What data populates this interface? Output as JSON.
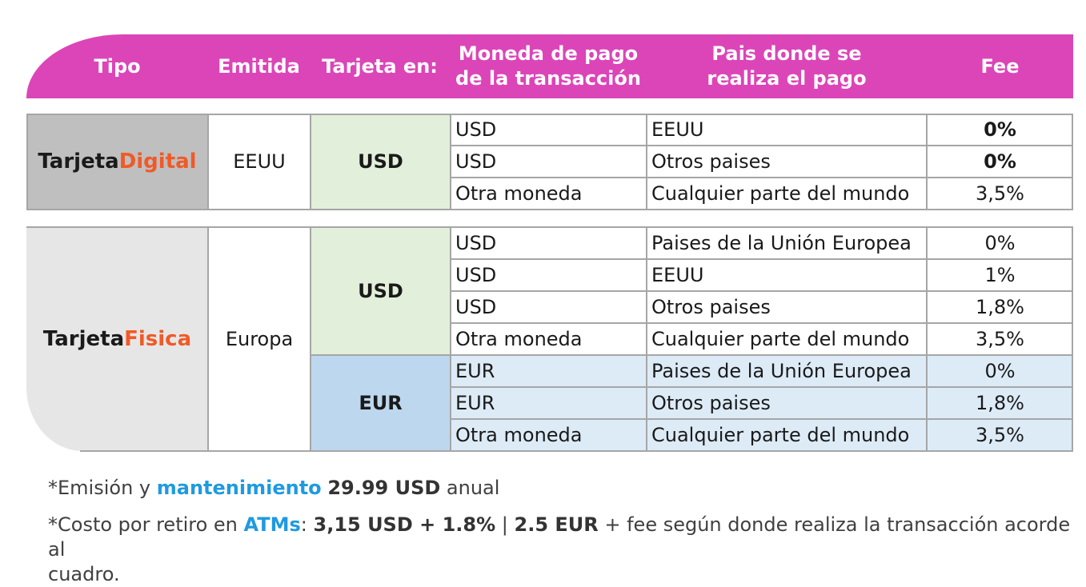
{
  "header": {
    "tipo": "Tipo",
    "emitida": "Emitida",
    "tarjeta_en": "Tarjeta en:",
    "moneda_l1": "Moneda de pago",
    "moneda_l2": "de la transacción",
    "pais_l1": "Pais donde se",
    "pais_l2": "realiza el pago",
    "fee": "Fee"
  },
  "digital": {
    "label_a": "Tarjeta ",
    "label_b": "Digital",
    "emitida": "EEUU",
    "currency": "USD",
    "rows": [
      {
        "moneda": "USD",
        "pais": "EEUU",
        "fee": "0%"
      },
      {
        "moneda": "USD",
        "pais": "Otros paises",
        "fee": "0%"
      },
      {
        "moneda": "Otra moneda",
        "pais": "Cualquier parte del mundo",
        "fee": "3,5%"
      }
    ]
  },
  "fisica": {
    "label_a": "Tarjeta ",
    "label_b": "Fisica",
    "emitida": "Europa",
    "currency_usd": "USD",
    "currency_eur": "EUR",
    "rows": [
      {
        "moneda": "USD",
        "pais": "Paises de la Unión Europea",
        "fee": "0%"
      },
      {
        "moneda": "USD",
        "pais": "EEUU",
        "fee": "1%"
      },
      {
        "moneda": "USD",
        "pais": "Otros paises",
        "fee": "1,8%"
      },
      {
        "moneda": "Otra moneda",
        "pais": "Cualquier parte del mundo",
        "fee": "3,5%"
      },
      {
        "moneda": "EUR",
        "pais": "Paises de la Unión Europea",
        "fee": "0%"
      },
      {
        "moneda": "EUR",
        "pais": "Otros paises",
        "fee": "1,8%"
      },
      {
        "moneda": "Otra moneda",
        "pais": "Cualquier parte del mundo",
        "fee": "3,5%"
      }
    ]
  },
  "notes": {
    "n1_a": "*Emisión y ",
    "n1_b": "mantenimiento",
    "n1_c": "29.99 USD",
    "n1_d": " anual",
    "n2_a": "*Costo por retiro en ",
    "n2_b": "ATMs",
    "n2_c": ": ",
    "n2_d": "3,15 USD + 1.8%",
    "n2_e": " | ",
    "n2_f": "2.5 EUR",
    "n2_g": " + fee según donde realiza la transacción acorde al",
    "n2_h": "cuadro."
  },
  "colors": {
    "header": "#dc45b8",
    "digital_bg": "#bfbfbf",
    "fisica_bg": "#e7e6e6",
    "usd_bg": "#e2efda",
    "eur_bg": "#bdd7ee",
    "eur_rows_bg": "#ddebf7",
    "accent_orange": "#f05a28",
    "accent_blue": "#1f9ae0"
  }
}
